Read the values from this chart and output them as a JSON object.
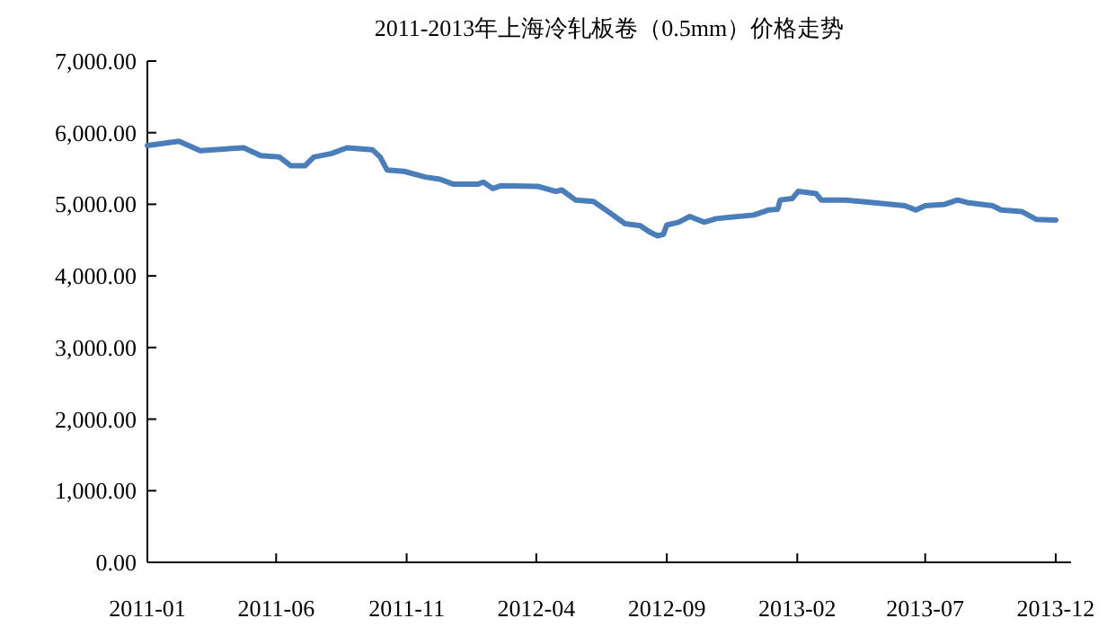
{
  "chart_data": {
    "type": "line",
    "title": "2011-2013年上海冷轧板卷（0.5mm）价格走势",
    "x": [
      "2011-01-01",
      "2011-02-07",
      "2011-03-04",
      "2011-04-24",
      "2011-05-14",
      "2011-06-05",
      "2011-06-18",
      "2011-07-05",
      "2011-07-15",
      "2011-08-05",
      "2011-08-23",
      "2011-09-22",
      "2011-10-01",
      "2011-10-09",
      "2011-10-29",
      "2011-11-23",
      "2011-12-10",
      "2011-12-26",
      "2012-01-23",
      "2012-01-30",
      "2012-02-10",
      "2012-02-20",
      "2012-04-03",
      "2012-04-24",
      "2012-05-01",
      "2012-05-17",
      "2012-06-07",
      "2012-06-24",
      "2012-07-14",
      "2012-08-01",
      "2012-08-11",
      "2012-08-21",
      "2012-08-28",
      "2012-09-01",
      "2012-09-15",
      "2012-09-28",
      "2012-10-15",
      "2012-10-29",
      "2012-11-15",
      "2012-12-12",
      "2012-12-29",
      "2013-01-09",
      "2013-01-12",
      "2013-01-26",
      "2013-02-02",
      "2013-02-23",
      "2013-03-01",
      "2013-03-30",
      "2013-05-03",
      "2013-06-07",
      "2013-06-20",
      "2013-07-01",
      "2013-07-24",
      "2013-08-08",
      "2013-08-21",
      "2013-09-18",
      "2013-09-28",
      "2013-10-22",
      "2013-11-08",
      "2013-12-01"
    ],
    "series": [
      {
        "color": "#4a7ebb",
        "values": [
          5820,
          5880,
          5750,
          5790,
          5680,
          5660,
          5540,
          5540,
          5660,
          5710,
          5790,
          5760,
          5660,
          5480,
          5460,
          5380,
          5350,
          5280,
          5280,
          5310,
          5220,
          5260,
          5250,
          5180,
          5200,
          5060,
          5040,
          4900,
          4730,
          4700,
          4620,
          4560,
          4580,
          4710,
          4750,
          4830,
          4750,
          4800,
          4820,
          4850,
          4920,
          4930,
          5060,
          5080,
          5180,
          5150,
          5060,
          5060,
          5020,
          4980,
          4920,
          4980,
          5000,
          5060,
          5020,
          4980,
          4920,
          4900,
          4790,
          4780
        ]
      }
    ],
    "xlim": [
      "2011-01-01",
      "2013-12-19"
    ],
    "xticks": [
      "2011-01",
      "2011-06",
      "2011-11",
      "2012-04",
      "2012-09",
      "2013-02",
      "2013-07",
      "2013-12"
    ],
    "ylim": [
      0,
      7000
    ],
    "yticks": [
      {
        "value": 0,
        "label": "0.00"
      },
      {
        "value": 1000,
        "label": "1,000.00"
      },
      {
        "value": 2000,
        "label": "2,000.00"
      },
      {
        "value": 3000,
        "label": "3,000.00"
      },
      {
        "value": 4000,
        "label": "4,000.00"
      },
      {
        "value": 5000,
        "label": "5,000.00"
      },
      {
        "value": 6000,
        "label": "6,000.00"
      },
      {
        "value": 7000,
        "label": "7,000.00"
      }
    ],
    "grid": false,
    "marker": "none",
    "line_style": "solid"
  }
}
